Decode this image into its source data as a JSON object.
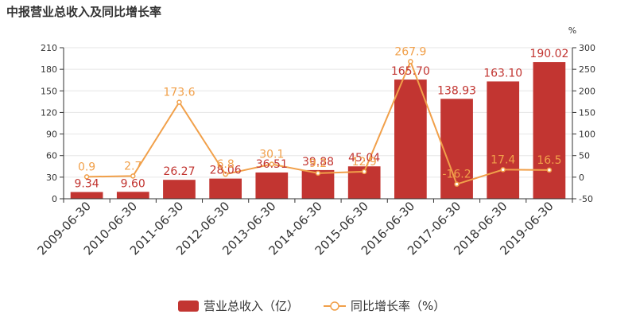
{
  "title": "中报营业总收入及同比增长率",
  "chart_data": {
    "type": "bar",
    "categories": [
      "2009-06-30",
      "2010-06-30",
      "2011-06-30",
      "2012-06-30",
      "2013-06-30",
      "2014-06-30",
      "2015-06-30",
      "2016-06-30",
      "2017-06-30",
      "2018-06-30",
      "2019-06-30"
    ],
    "series": [
      {
        "name": "营业总收入（亿）",
        "type": "bar",
        "axis": "left",
        "values": [
          9.34,
          9.6,
          26.27,
          28.06,
          36.51,
          39.88,
          45.04,
          165.7,
          138.93,
          163.1,
          190.02
        ],
        "labels": [
          "9.34",
          "9.60",
          "26.27",
          "28.06",
          "36.51",
          "39.88",
          "45.04",
          "165.70",
          "138.93",
          "163.10",
          "190.02"
        ],
        "color": "#c23531"
      },
      {
        "name": "同比增长率（%）",
        "type": "line",
        "axis": "right",
        "values": [
          0.9,
          2.7,
          173.6,
          6.8,
          30.1,
          9.2,
          12.9,
          267.9,
          -16.2,
          17.4,
          16.5
        ],
        "labels": [
          "0.9",
          "2.7",
          "173.6",
          "6.8",
          "30.1",
          "9.2",
          "12.9",
          "267.9",
          "-16.2",
          "17.4",
          "16.5"
        ],
        "color": "#f1a04a"
      }
    ],
    "y_left": {
      "ylim": [
        0,
        210
      ],
      "ticks": [
        "0",
        "30",
        "60",
        "90",
        "120",
        "150",
        "180",
        "210"
      ]
    },
    "y_right": {
      "ylim": [
        -50,
        300
      ],
      "ticks": [
        "-50",
        "0",
        "50",
        "100",
        "150",
        "200",
        "250",
        "300"
      ],
      "unit": "%"
    },
    "legend_position": "bottom-center",
    "grid": true
  }
}
